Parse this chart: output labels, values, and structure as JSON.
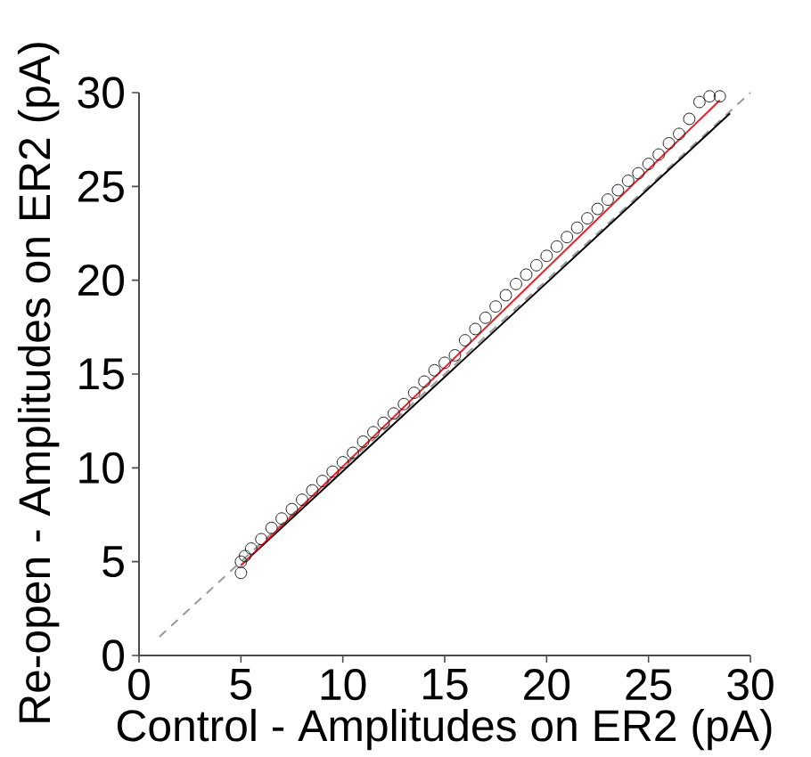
{
  "chart_data": {
    "type": "scatter",
    "xlabel": "Control - Amplitudes on ER2 (pA)",
    "ylabel": "Re-open - Amplitudes on ER2 (pA)",
    "xlim": [
      0,
      30
    ],
    "ylim": [
      0,
      30
    ],
    "xticks": [
      0,
      5,
      10,
      15,
      20,
      25,
      30
    ],
    "yticks": [
      0,
      5,
      10,
      15,
      20,
      25,
      30
    ],
    "series": [
      {
        "type": "line",
        "color": "#999999",
        "line_style": "dashed",
        "marker": "none",
        "x": [
          1,
          30
        ],
        "values": [
          1,
          30
        ]
      },
      {
        "color": "#1a1a1a",
        "marker": "circle",
        "x": [
          5,
          5,
          5.2,
          5.5,
          6,
          6.5,
          7,
          7.5,
          8,
          8.5,
          9,
          9.5,
          10,
          10.5,
          11,
          11.5,
          12,
          12.5,
          13,
          13.5,
          14,
          14.5,
          15,
          15.5,
          16,
          16.5,
          17,
          17.5,
          18,
          18.5,
          19,
          19.5,
          20,
          20.5,
          21,
          21.5,
          22,
          22.5,
          23,
          23.5,
          24,
          24.5,
          25,
          25.5,
          26,
          26.5,
          27,
          27.5,
          28,
          28.5
        ],
        "values": [
          4.4,
          5,
          5.3,
          5.7,
          6.2,
          6.8,
          7.3,
          7.8,
          8.3,
          8.8,
          9.3,
          9.8,
          10.3,
          10.8,
          11.4,
          11.9,
          12.4,
          12.9,
          13.4,
          14,
          14.6,
          15.2,
          15.6,
          16,
          16.8,
          17.4,
          18,
          18.6,
          19.2,
          19.8,
          20.3,
          20.8,
          21.3,
          21.8,
          22.3,
          22.8,
          23.3,
          23.8,
          24.3,
          24.8,
          25.3,
          25.7,
          26.2,
          26.7,
          27.3,
          27.8,
          28.6,
          29.5,
          29.8,
          29.8
        ]
      },
      {
        "type": "line",
        "color": "#000000",
        "line_style": "solid",
        "marker": "none",
        "x": [
          5,
          29
        ],
        "values": [
          4.8,
          28.9
        ]
      },
      {
        "type": "line",
        "color": "#e8202a",
        "line_style": "solid",
        "marker": "none",
        "x": [
          5,
          28.5
        ],
        "values": [
          4.8,
          29.6
        ]
      }
    ]
  }
}
